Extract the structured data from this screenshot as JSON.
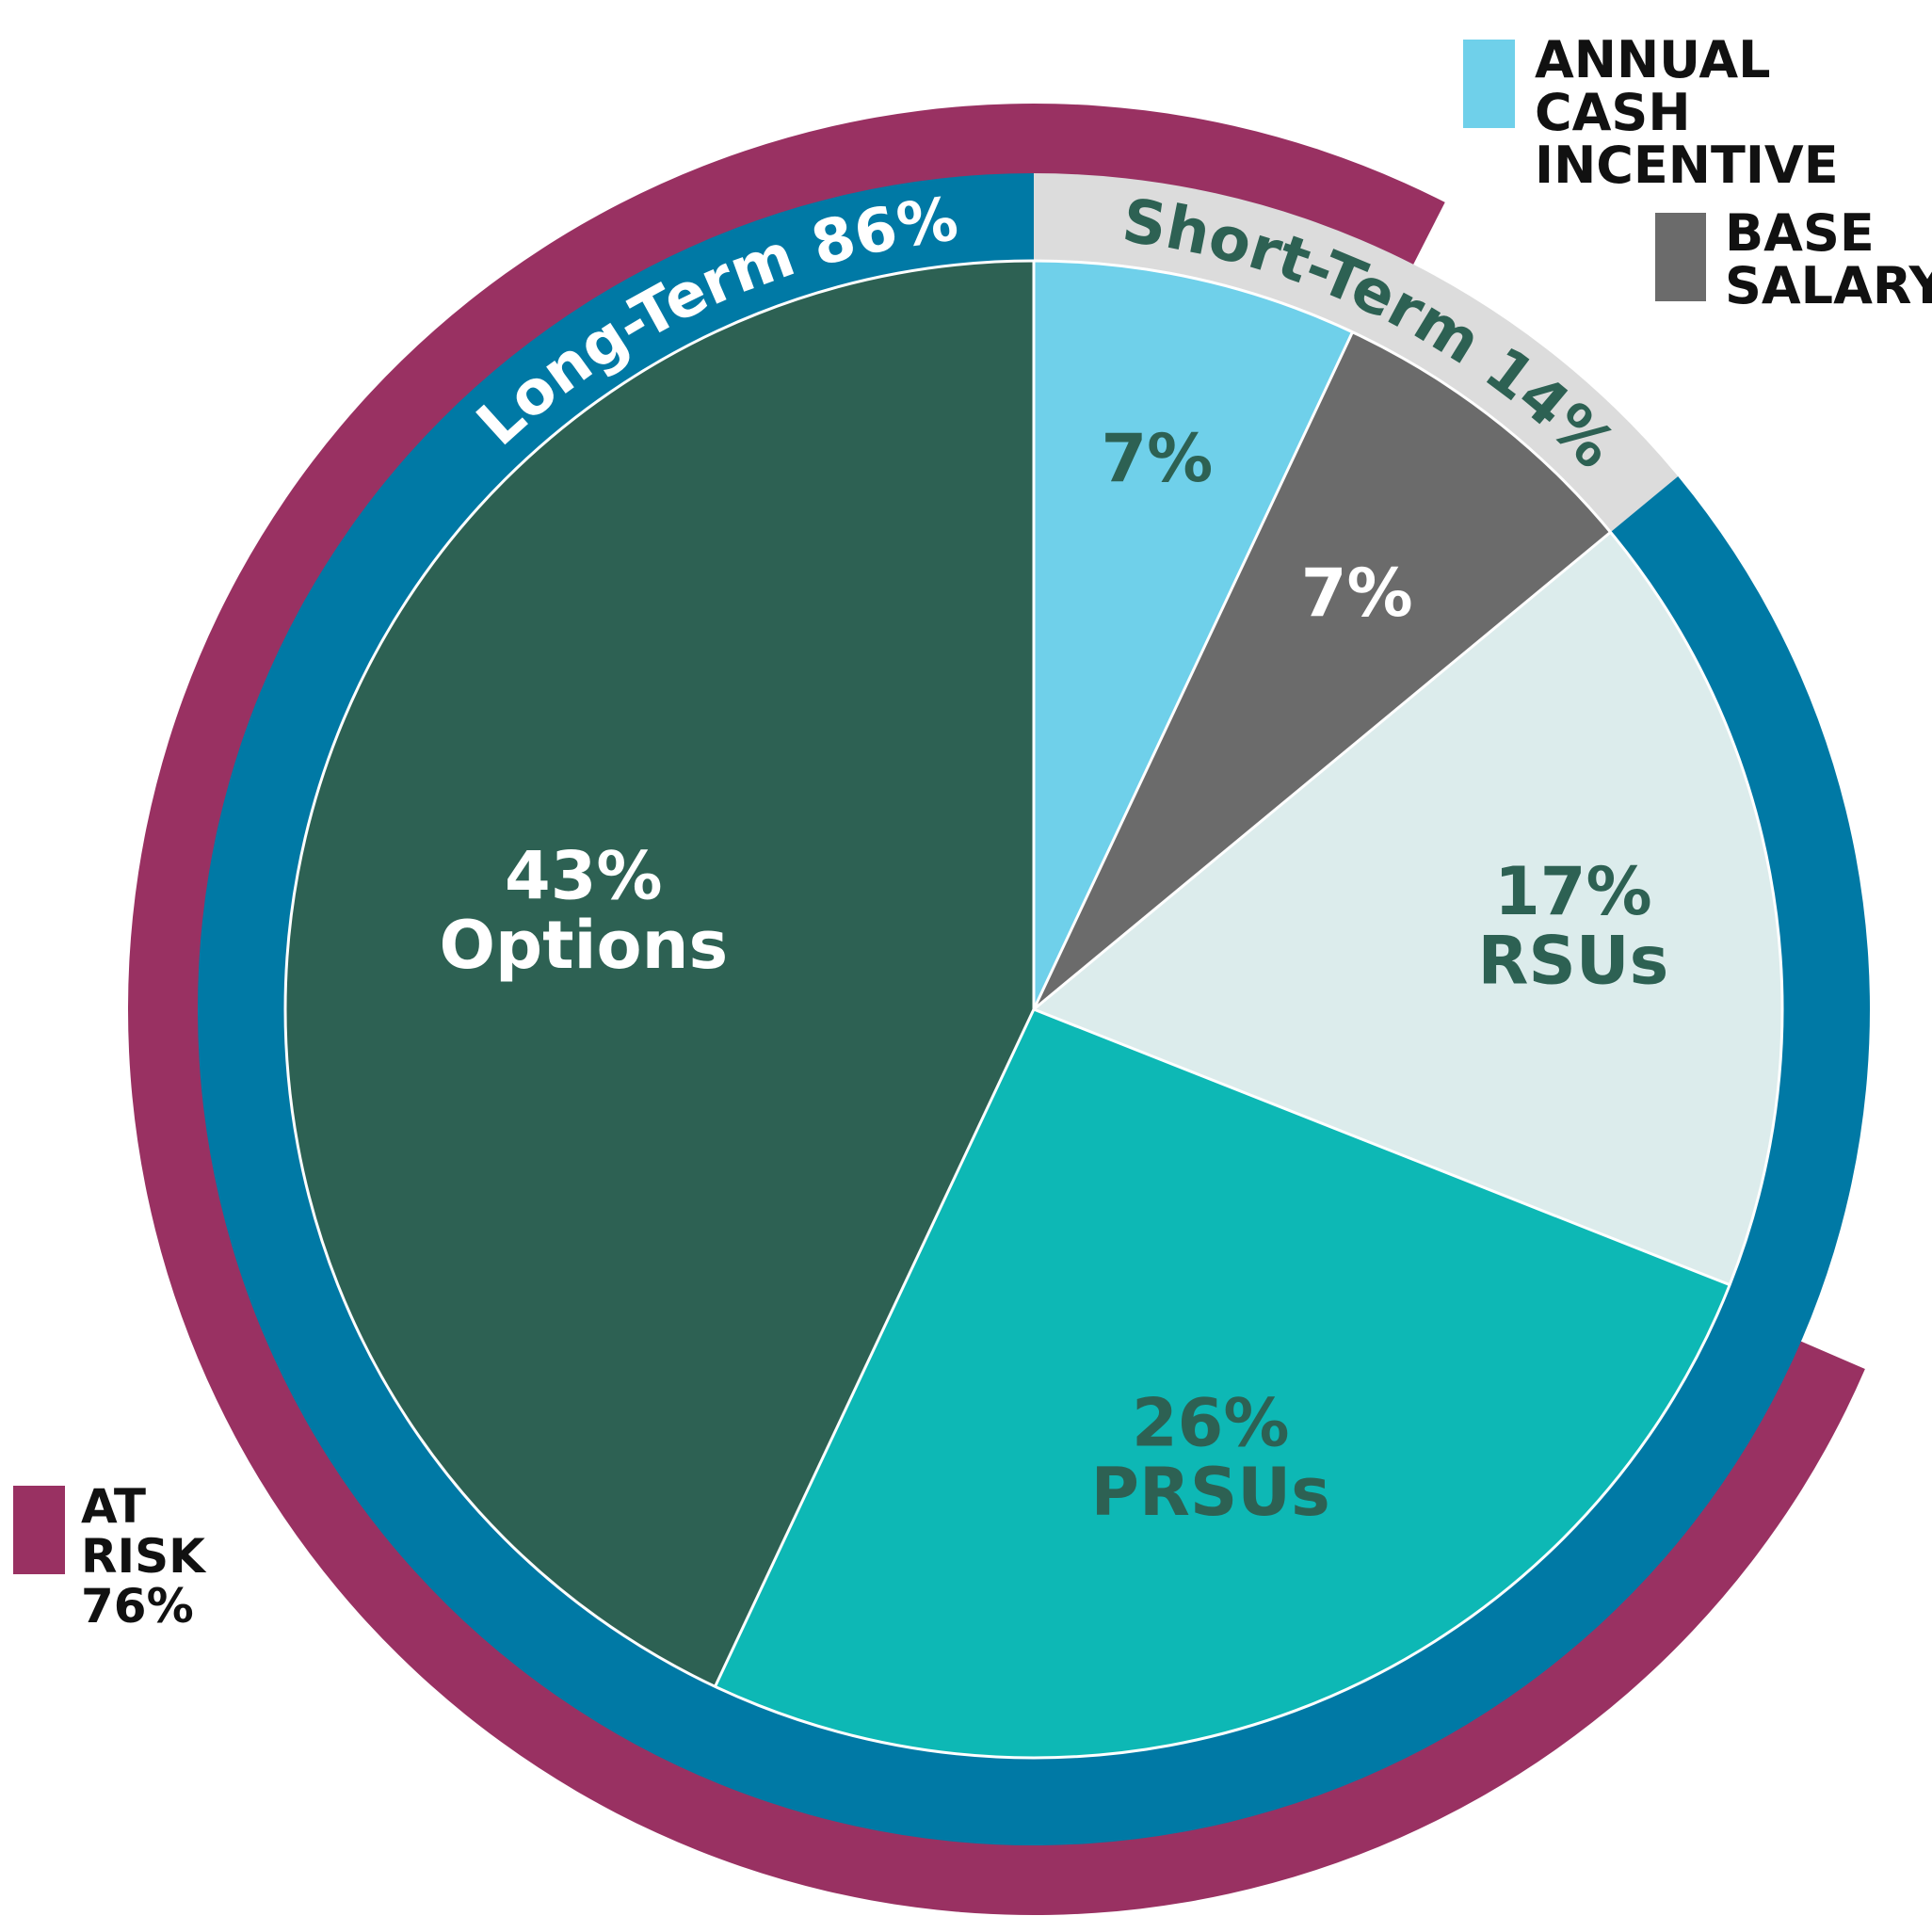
{
  "colors": {
    "background": "#ffffff",
    "at_risk_ring": "#993162",
    "long_term_ring": "#0079a5",
    "short_term_ring": "#dcdcdc",
    "divider": "#ffffff"
  },
  "legend": [
    {
      "label": "ANNUAL CASH\nINCENTIVE",
      "color": "#6fd0ea"
    },
    {
      "label": "BASE\nSALARY",
      "color": "#6b6b6b"
    },
    {
      "label": "AT\nRISK\n76%",
      "color": "#993162"
    }
  ],
  "chart_data": {
    "type": "pie",
    "title": "",
    "slices": [
      {
        "label": "",
        "value": 7,
        "value_label": "7%",
        "color": "#6fd0ea",
        "text_color": "#2d6153",
        "legend": "ANNUAL CASH INCENTIVE"
      },
      {
        "label": "",
        "value": 7,
        "value_label": "7%",
        "color": "#6b6b6b",
        "text_color": "#ffffff",
        "legend": "BASE SALARY"
      },
      {
        "label": "RSUs",
        "value": 17,
        "value_label": "17%",
        "color": "#dcecec",
        "text_color": "#2d6153"
      },
      {
        "label": "PRSUs",
        "value": 26,
        "value_label": "26%",
        "color": "#0db8b5",
        "text_color": "#2d6153"
      },
      {
        "label": "Options",
        "value": 43,
        "value_label": "43%",
        "color": "#2d6153",
        "text_color": "#ffffff"
      }
    ],
    "groups": [
      {
        "label": "Short-Term 14%",
        "value": 14,
        "members": [
          "ANNUAL CASH INCENTIVE",
          "BASE SALARY"
        ],
        "color": "#dcdcdc",
        "text_color": "#2d6153"
      },
      {
        "label": "Long-Term 86%",
        "value": 86,
        "members": [
          "RSUs",
          "PRSUs",
          "Options"
        ],
        "color": "#0079a5",
        "text_color": "#ffffff"
      }
    ],
    "at_risk": {
      "label": "AT RISK 76%",
      "value": 76,
      "color": "#993162"
    }
  }
}
